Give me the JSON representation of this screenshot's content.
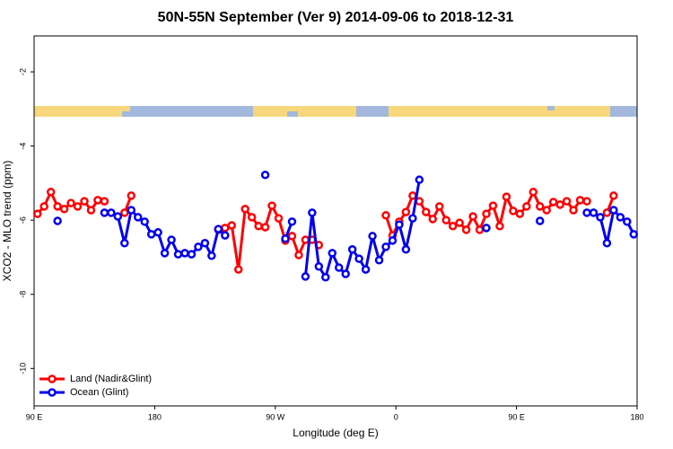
{
  "chart_data": {
    "type": "line",
    "title": "50N-55N September (Ver 9)   2014-09-06 to 2018-12-31",
    "x_label": "Longitude (deg E)",
    "y_label": "XCO2 - MLO trend (ppm)",
    "xlim": [
      90,
      540
    ],
    "ylim": [
      -11.01,
      -1.03
    ],
    "xticks": [
      {
        "value": 90,
        "label": "90 E"
      },
      180,
      {
        "value": 270,
        "label": "90 W"
      },
      {
        "value": 360,
        "label": "0"
      },
      {
        "value": 450,
        "label": "90 E"
      },
      {
        "value": 540,
        "label": "180"
      }
    ],
    "yticks": [
      -2,
      -4,
      -6,
      -8,
      -10
    ],
    "legend": "bottom-left",
    "x": [
      92.5,
      97.5,
      102.5,
      107.5,
      112.5,
      117.5,
      122.5,
      127.5,
      132.5,
      137.5,
      142.5,
      147.5,
      152.5,
      157.5,
      162.5,
      167.5,
      172.5,
      177.5,
      182.5,
      187.5,
      192.5,
      197.5,
      202.5,
      207.5,
      212.5,
      217.5,
      222.5,
      227.5,
      232.5,
      237.5,
      242.5,
      247.5,
      252.5,
      257.5,
      262.5,
      267.5,
      272.5,
      277.5,
      282.5,
      287.5,
      292.5,
      297.5,
      302.5,
      307.5,
      312.5,
      317.5,
      322.5,
      327.5,
      332.5,
      337.5,
      342.5,
      347.5,
      352.5,
      357.5,
      362.5,
      367.5,
      372.5,
      377.5,
      382.5,
      387.5,
      392.5,
      397.5,
      402.5,
      407.5,
      412.5,
      417.5,
      422.5,
      427.5,
      432.5,
      437.5,
      442.5,
      447.5,
      452.5,
      457.5,
      462.5,
      467.5,
      472.5,
      477.5,
      482.5,
      487.5,
      492.5,
      497.5,
      502.5,
      507.5,
      512.5,
      517.5,
      522.5,
      527.5,
      532.5,
      537.5
    ],
    "series": [
      {
        "name": "Land (Nadir&Glint)",
        "color": "#ff0000",
        "values": [
          -5.83,
          -5.63,
          -5.24,
          -5.63,
          -5.7,
          -5.54,
          -5.63,
          -5.49,
          -5.73,
          -5.46,
          -5.49,
          null,
          null,
          -5.8,
          -5.34,
          null,
          null,
          null,
          null,
          null,
          null,
          null,
          null,
          null,
          null,
          null,
          null,
          -6.26,
          -6.21,
          -6.14,
          -7.33,
          -5.7,
          -5.92,
          -6.16,
          -6.19,
          -5.61,
          -5.95,
          -6.55,
          -6.43,
          -6.94,
          -6.53,
          -6.53,
          -6.67,
          null,
          null,
          null,
          null,
          null,
          null,
          null,
          null,
          null,
          -5.87,
          -6.41,
          -6.04,
          -5.78,
          -5.34,
          -5.49,
          -5.78,
          -5.97,
          -5.63,
          -6.0,
          -6.16,
          -6.07,
          -6.26,
          -5.9,
          -6.26,
          -5.83,
          -5.61,
          -6.16,
          -5.37,
          -5.75,
          -5.83,
          -5.63,
          -5.24,
          -5.63,
          -5.73,
          -5.51,
          -5.58,
          -5.49,
          -5.73,
          -5.46,
          -5.49,
          null,
          null,
          -5.8,
          -5.34,
          null,
          null,
          null
        ]
      },
      {
        "name": "Ocean (Glint)",
        "color": "#0000ee",
        "values": [
          null,
          null,
          null,
          -6.02,
          null,
          null,
          null,
          null,
          null,
          null,
          -5.8,
          -5.8,
          -5.9,
          -6.62,
          -5.73,
          -5.92,
          -6.04,
          -6.38,
          -6.33,
          -6.89,
          -6.53,
          -6.92,
          -6.89,
          -6.92,
          -6.72,
          -6.62,
          -6.96,
          -6.24,
          -6.41,
          null,
          null,
          null,
          null,
          null,
          -4.78,
          null,
          null,
          -6.5,
          -6.04,
          null,
          -7.52,
          -5.8,
          -7.25,
          -7.54,
          -6.89,
          -7.28,
          -7.45,
          -6.79,
          -7.04,
          -7.33,
          -6.43,
          -7.08,
          -6.72,
          -6.55,
          -6.12,
          -6.79,
          -5.95,
          -4.91,
          null,
          null,
          null,
          null,
          null,
          null,
          null,
          null,
          null,
          -6.21,
          null,
          null,
          null,
          null,
          null,
          null,
          null,
          -6.02,
          null,
          null,
          null,
          null,
          null,
          null,
          -5.8,
          -5.8,
          -5.92,
          -6.62,
          -5.73,
          -5.92,
          -6.04,
          -6.38
        ]
      }
    ]
  }
}
